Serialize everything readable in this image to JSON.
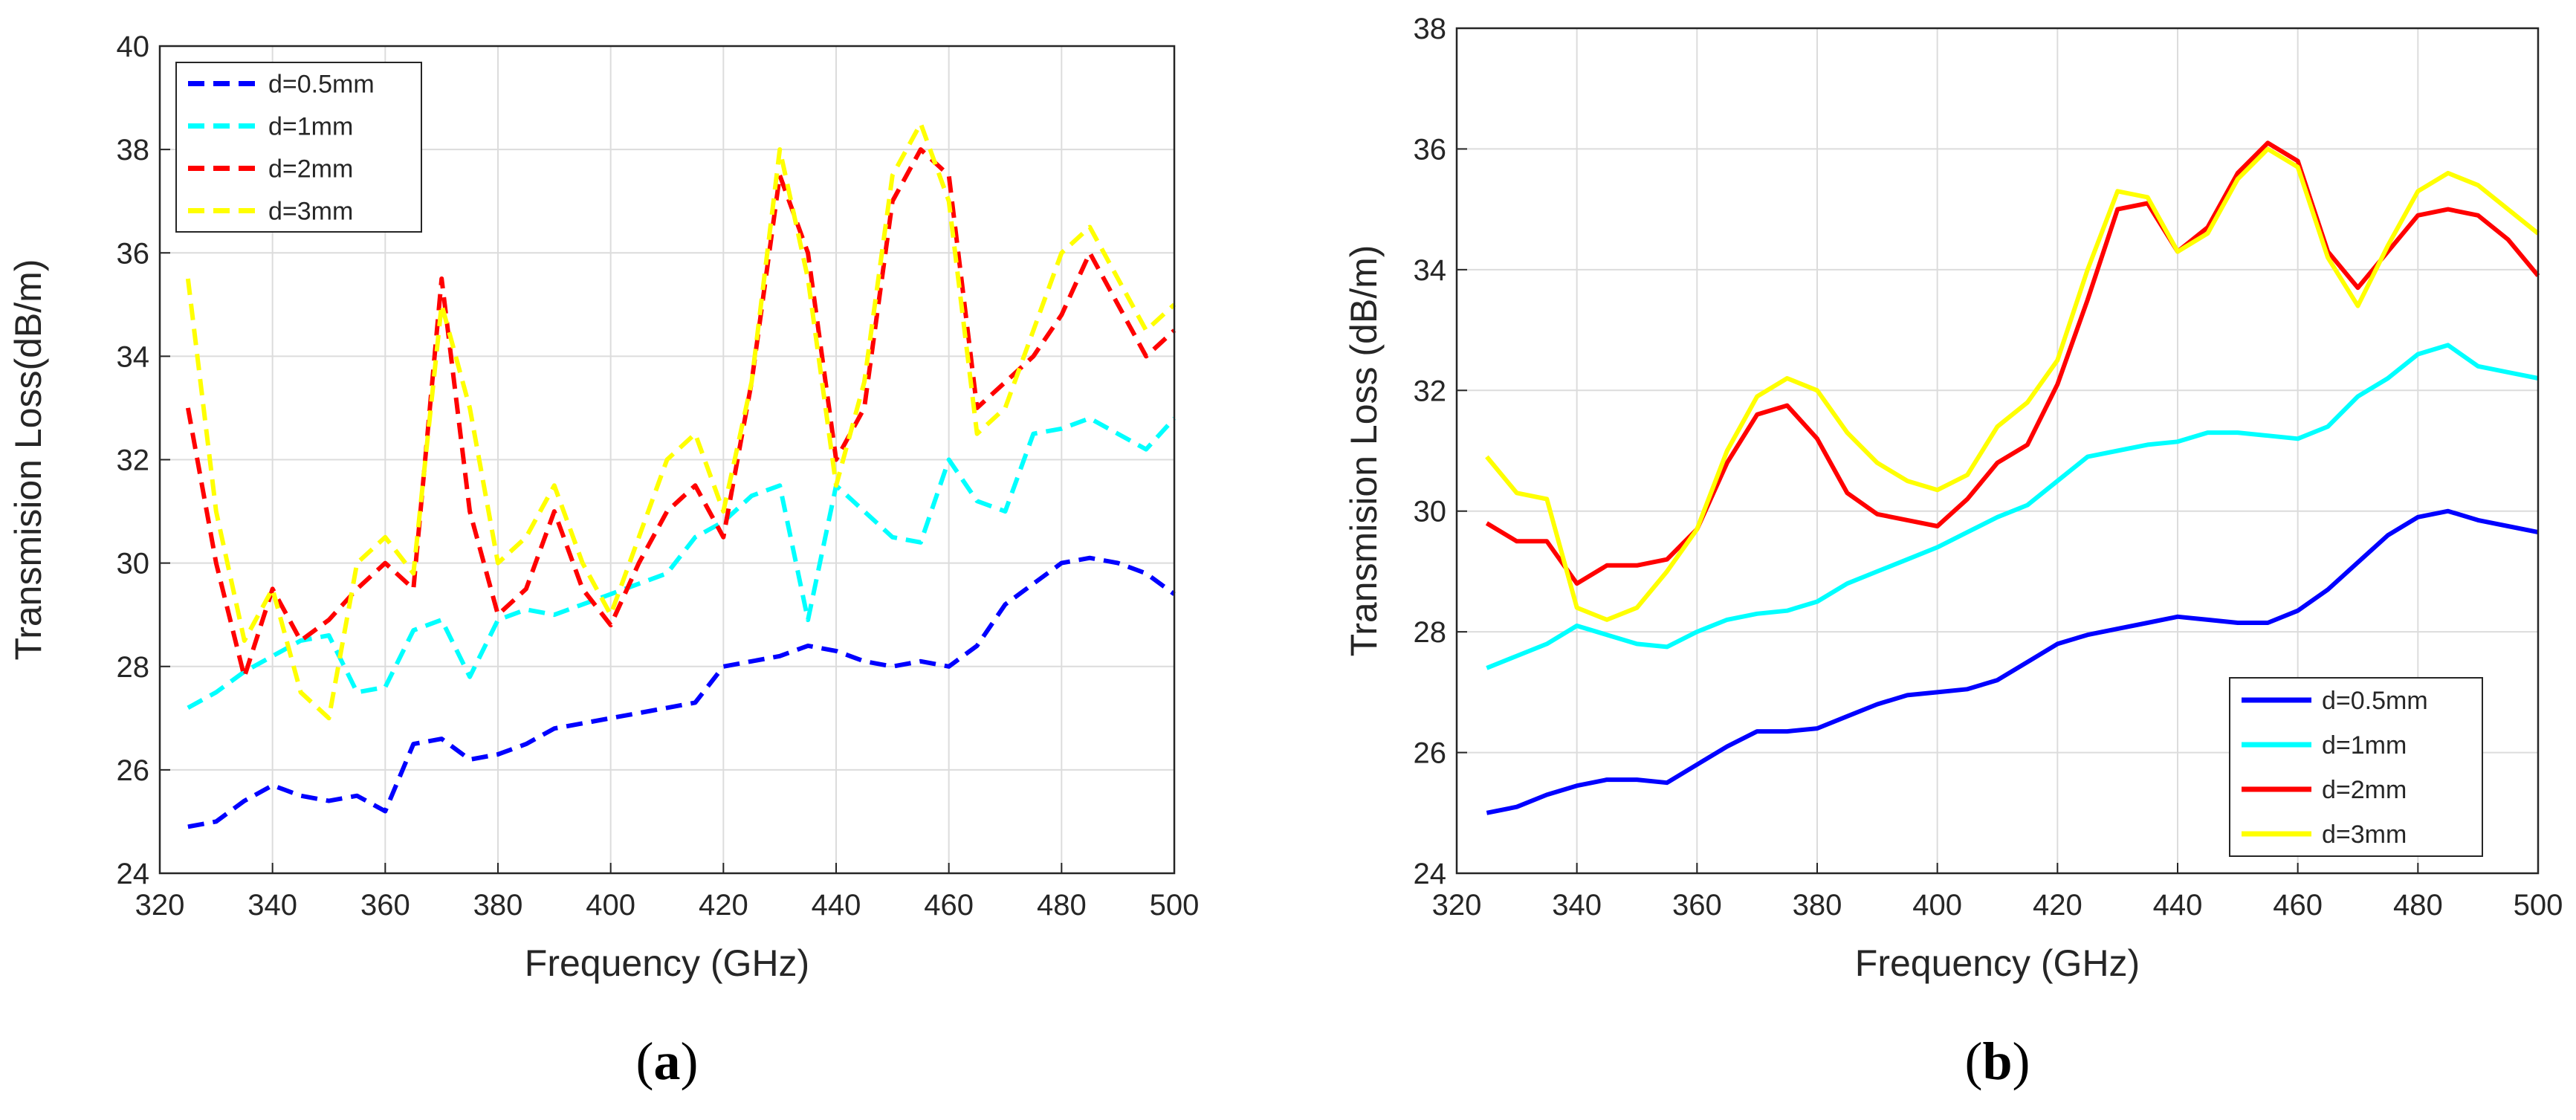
{
  "chart_data": [
    {
      "type": "line",
      "panel": "a",
      "caption": "a",
      "line_style": "dashed",
      "xlabel": "Frequency (GHz)",
      "ylabel": "Transmision Loss(dB/m)",
      "xlim": [
        320,
        500
      ],
      "ylim": [
        24,
        40
      ],
      "xticks": [
        320,
        340,
        360,
        380,
        400,
        420,
        440,
        460,
        480,
        500
      ],
      "yticks": [
        24,
        26,
        28,
        30,
        32,
        34,
        36,
        38,
        40
      ],
      "grid": true,
      "legend_position": "top-left",
      "x": [
        325,
        330,
        335,
        340,
        345,
        350,
        355,
        360,
        365,
        370,
        375,
        380,
        385,
        390,
        395,
        400,
        405,
        410,
        415,
        420,
        425,
        430,
        435,
        440,
        445,
        450,
        455,
        460,
        465,
        470,
        475,
        480,
        485,
        490,
        495,
        500
      ],
      "series": [
        {
          "name": "d=0.5mm",
          "color": "#0000ff",
          "values": [
            24.9,
            25.0,
            25.4,
            25.7,
            25.5,
            25.4,
            25.5,
            25.2,
            26.5,
            26.6,
            26.2,
            26.3,
            26.5,
            26.8,
            26.9,
            27.0,
            27.1,
            27.2,
            27.3,
            28.0,
            28.1,
            28.2,
            28.4,
            28.3,
            28.1,
            28.0,
            28.1,
            28.0,
            28.4,
            29.2,
            29.6,
            30.0,
            30.1,
            30.0,
            29.8,
            29.4
          ]
        },
        {
          "name": "d=1mm",
          "color": "#00ffff",
          "values": [
            27.2,
            27.5,
            27.9,
            28.2,
            28.5,
            28.6,
            27.5,
            27.6,
            28.7,
            28.9,
            27.8,
            28.9,
            29.1,
            29.0,
            29.2,
            29.4,
            29.6,
            29.8,
            30.5,
            30.8,
            31.3,
            31.5,
            28.9,
            31.5,
            31.0,
            30.5,
            30.4,
            32.0,
            31.2,
            31.0,
            32.5,
            32.6,
            32.8,
            32.5,
            32.2,
            32.8
          ]
        },
        {
          "name": "d=2mm",
          "color": "#ff0000",
          "values": [
            33.0,
            30.0,
            27.8,
            29.5,
            28.5,
            28.9,
            29.5,
            30.0,
            29.5,
            35.5,
            31.0,
            29.0,
            29.5,
            31.0,
            29.5,
            28.8,
            30.0,
            31.0,
            31.5,
            30.5,
            33.5,
            37.5,
            36.0,
            32.0,
            33.0,
            37.0,
            38.0,
            37.5,
            33.0,
            33.5,
            34.0,
            34.8,
            36.0,
            35.0,
            34.0,
            34.5
          ]
        },
        {
          "name": "d=3mm",
          "color": "#ffff00",
          "values": [
            35.5,
            31.0,
            28.5,
            29.5,
            27.5,
            27.0,
            30.0,
            30.5,
            29.8,
            35.0,
            33.0,
            30.0,
            30.5,
            31.5,
            30.0,
            29.0,
            30.5,
            32.0,
            32.5,
            31.0,
            33.5,
            38.0,
            35.5,
            31.5,
            33.5,
            37.5,
            38.5,
            37.0,
            32.5,
            33.0,
            34.5,
            36.0,
            36.5,
            35.5,
            34.5,
            35.0
          ]
        }
      ]
    },
    {
      "type": "line",
      "panel": "b",
      "caption": "b",
      "line_style": "solid",
      "xlabel": "Frequency (GHz)",
      "ylabel": "Transmision Loss (dB/m)",
      "xlim": [
        320,
        500
      ],
      "ylim": [
        24,
        38
      ],
      "xticks": [
        320,
        340,
        360,
        380,
        400,
        420,
        440,
        460,
        480,
        500
      ],
      "yticks": [
        24,
        26,
        28,
        30,
        32,
        34,
        36,
        38
      ],
      "grid": true,
      "legend_position": "bottom-right",
      "x": [
        325,
        330,
        335,
        340,
        345,
        350,
        355,
        360,
        365,
        370,
        375,
        380,
        385,
        390,
        395,
        400,
        405,
        410,
        415,
        420,
        425,
        430,
        435,
        440,
        445,
        450,
        455,
        460,
        465,
        470,
        475,
        480,
        485,
        490,
        495,
        500
      ],
      "series": [
        {
          "name": "d=0.5mm",
          "color": "#0000ff",
          "values": [
            25.0,
            25.1,
            25.3,
            25.45,
            25.55,
            25.55,
            25.5,
            25.8,
            26.1,
            26.35,
            26.35,
            26.4,
            26.6,
            26.8,
            26.95,
            27.0,
            27.05,
            27.2,
            27.5,
            27.8,
            27.95,
            28.05,
            28.15,
            28.25,
            28.2,
            28.15,
            28.15,
            28.35,
            28.7,
            29.15,
            29.6,
            29.9,
            30.0,
            29.85,
            29.75,
            29.65
          ]
        },
        {
          "name": "d=1mm",
          "color": "#00ffff",
          "values": [
            27.4,
            27.6,
            27.8,
            28.1,
            27.95,
            27.8,
            27.75,
            28.0,
            28.2,
            28.3,
            28.35,
            28.5,
            28.8,
            29.0,
            29.2,
            29.4,
            29.65,
            29.9,
            30.1,
            30.5,
            30.9,
            31.0,
            31.1,
            31.15,
            31.3,
            31.3,
            31.25,
            31.2,
            31.4,
            31.9,
            32.2,
            32.6,
            32.75,
            32.4,
            32.3,
            32.2
          ]
        },
        {
          "name": "d=2mm",
          "color": "#ff0000",
          "values": [
            29.8,
            29.5,
            29.5,
            28.8,
            29.1,
            29.1,
            29.2,
            29.7,
            30.8,
            31.6,
            31.75,
            31.2,
            30.3,
            29.95,
            29.85,
            29.75,
            30.2,
            30.8,
            31.1,
            32.1,
            33.5,
            35.0,
            35.1,
            34.3,
            34.7,
            35.6,
            36.1,
            35.8,
            34.3,
            33.7,
            34.3,
            34.9,
            35.0,
            34.9,
            34.5,
            33.9
          ]
        },
        {
          "name": "d=3mm",
          "color": "#ffff00",
          "values": [
            30.9,
            30.3,
            30.2,
            28.4,
            28.2,
            28.4,
            29.0,
            29.7,
            31.0,
            31.9,
            32.2,
            32.0,
            31.3,
            30.8,
            30.5,
            30.35,
            30.6,
            31.4,
            31.8,
            32.5,
            34.0,
            35.3,
            35.2,
            34.3,
            34.6,
            35.5,
            36.0,
            35.7,
            34.2,
            33.4,
            34.4,
            35.3,
            35.6,
            35.4,
            35.0,
            34.6
          ]
        }
      ]
    }
  ]
}
